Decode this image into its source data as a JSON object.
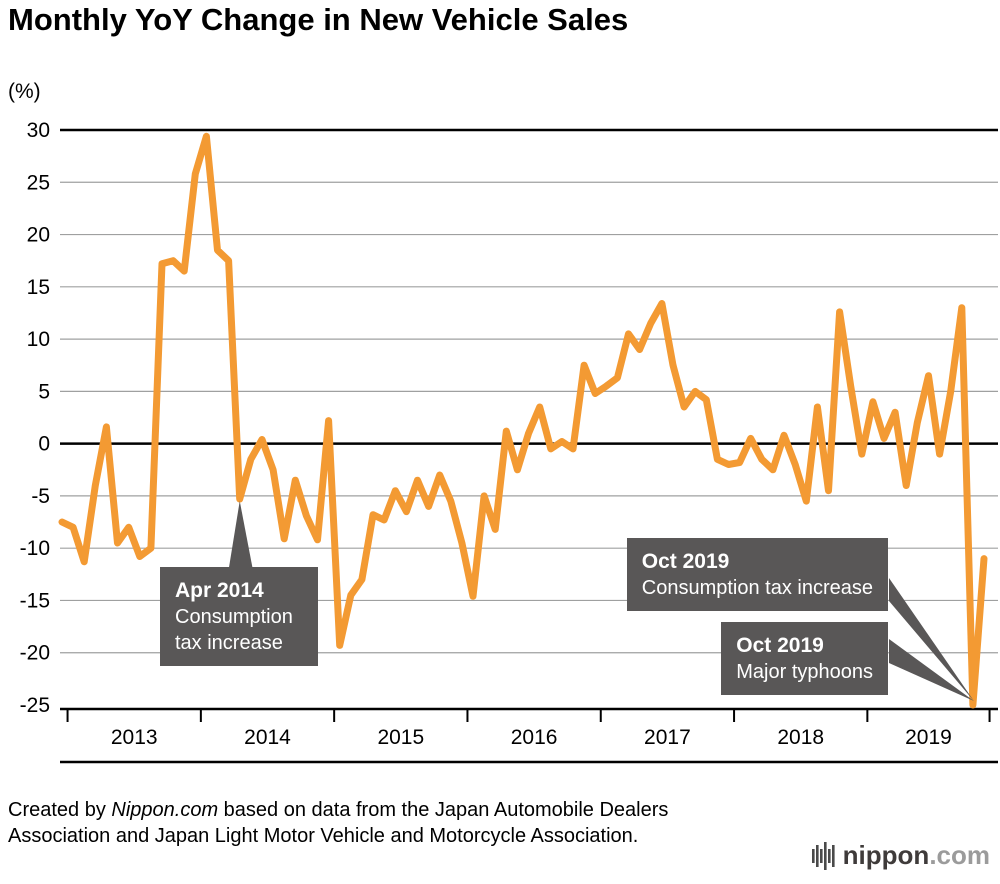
{
  "title": "Monthly YoY Change in New Vehicle Sales",
  "unit_label": "(%)",
  "chart_data": {
    "type": "line",
    "series_name": "YoY change in new vehicle sales (%)",
    "x": [
      "2012-12",
      "2013-01",
      "2013-02",
      "2013-03",
      "2013-04",
      "2013-05",
      "2013-06",
      "2013-07",
      "2013-08",
      "2013-09",
      "2013-10",
      "2013-11",
      "2013-12",
      "2014-01",
      "2014-02",
      "2014-03",
      "2014-04",
      "2014-05",
      "2014-06",
      "2014-07",
      "2014-08",
      "2014-09",
      "2014-10",
      "2014-11",
      "2014-12",
      "2015-01",
      "2015-02",
      "2015-03",
      "2015-04",
      "2015-05",
      "2015-06",
      "2015-07",
      "2015-08",
      "2015-09",
      "2015-10",
      "2015-11",
      "2015-12",
      "2016-01",
      "2016-02",
      "2016-03",
      "2016-04",
      "2016-05",
      "2016-06",
      "2016-07",
      "2016-08",
      "2016-09",
      "2016-10",
      "2016-11",
      "2016-12",
      "2017-01",
      "2017-02",
      "2017-03",
      "2017-04",
      "2017-05",
      "2017-06",
      "2017-07",
      "2017-08",
      "2017-09",
      "2017-10",
      "2017-11",
      "2017-12",
      "2018-01",
      "2018-02",
      "2018-03",
      "2018-04",
      "2018-05",
      "2018-06",
      "2018-07",
      "2018-08",
      "2018-09",
      "2018-10",
      "2018-11",
      "2018-12",
      "2019-01",
      "2019-02",
      "2019-03",
      "2019-04",
      "2019-05",
      "2019-06",
      "2019-07",
      "2019-08",
      "2019-09",
      "2019-10",
      "2019-11"
    ],
    "values": [
      -7.5,
      -8.0,
      -11.3,
      -4.0,
      1.6,
      -9.5,
      -8.0,
      -10.8,
      -10.0,
      17.2,
      17.5,
      16.5,
      25.8,
      29.4,
      18.5,
      17.5,
      -5.3,
      -1.5,
      0.4,
      -2.5,
      -9.1,
      -3.5,
      -6.9,
      -9.2,
      2.2,
      -19.3,
      -14.5,
      -13.0,
      -6.8,
      -7.3,
      -4.5,
      -6.5,
      -3.5,
      -6.0,
      -3.0,
      -5.5,
      -9.5,
      -14.6,
      -5.0,
      -8.2,
      1.2,
      -2.5,
      1.0,
      3.5,
      -0.5,
      0.2,
      -0.5,
      7.5,
      4.8,
      5.5,
      6.3,
      10.5,
      9.0,
      11.5,
      13.4,
      7.5,
      3.5,
      5.0,
      4.2,
      -1.5,
      -2.0,
      -1.8,
      0.5,
      -1.5,
      -2.5,
      0.8,
      -2.0,
      -5.5,
      3.5,
      -4.5,
      12.6,
      5.5,
      -1.0,
      4.0,
      0.5,
      3.0,
      -4.0,
      2.0,
      6.5,
      -1.0,
      5.0,
      13.0,
      -25.0,
      -11.0
    ],
    "ylim": [
      -25,
      30
    ],
    "ytick_step": 5,
    "year_labels": [
      "2013",
      "2014",
      "2015",
      "2016",
      "2017",
      "2018",
      "2019"
    ],
    "line_color": "#F39A33",
    "grid_color": "#9FA0A0",
    "axis_color": "#000000",
    "annotation_color": "#595757",
    "legend_position": "none",
    "grid": true
  },
  "annotations": {
    "apr2014": {
      "title": "Apr 2014",
      "line1": "Consumption",
      "line2": "tax increase",
      "target_month": "2014-04"
    },
    "oct2019_tax": {
      "title": "Oct 2019",
      "body": "Consumption tax increase",
      "target_month": "2019-10"
    },
    "oct2019_typhoon": {
      "title": "Oct 2019",
      "body": "Major typhoons",
      "target_month": "2019-10"
    }
  },
  "footer": {
    "prefix": "Created by ",
    "source_name": "Nippon.com",
    "suffix": " based on data from the Japan Automobile Dealers Association and Japan Light Motor Vehicle and Motorcycle Association."
  },
  "logo": {
    "name": "nippon",
    "tld": ".com"
  }
}
